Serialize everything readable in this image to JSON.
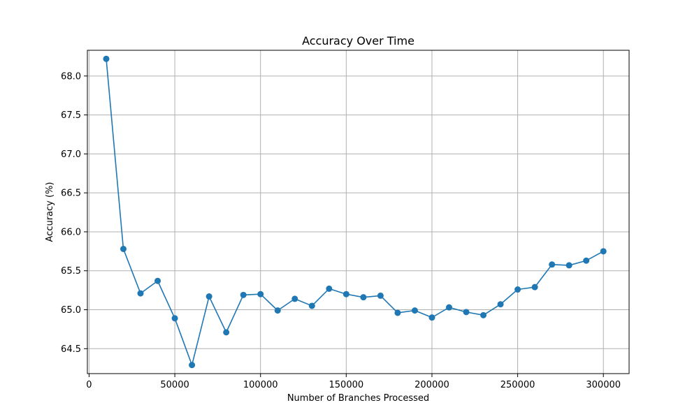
{
  "chart_data": {
    "type": "line",
    "title": "Accuracy Over Time",
    "xlabel": "Number of Branches Processed",
    "ylabel": "Accuracy (%)",
    "xlim": [
      -1000,
      315000
    ],
    "ylim": [
      64.18,
      68.33
    ],
    "xticks": [
      0,
      50000,
      100000,
      150000,
      200000,
      250000,
      300000
    ],
    "yticks": [
      64.5,
      65.0,
      65.5,
      66.0,
      66.5,
      67.0,
      67.5,
      68.0
    ],
    "xtick_labels": [
      "0",
      "50000",
      "100000",
      "150000",
      "200000",
      "250000",
      "300000"
    ],
    "ytick_labels": [
      "64.5",
      "65.0",
      "65.5",
      "66.0",
      "66.5",
      "67.0",
      "67.5",
      "68.0"
    ],
    "grid": true,
    "marker": "circle",
    "series": [
      {
        "color": "#1f77b4",
        "x": [
          10000,
          20000,
          30000,
          40000,
          50000,
          60000,
          70000,
          80000,
          90000,
          100000,
          110000,
          120000,
          130000,
          140000,
          150000,
          160000,
          170000,
          180000,
          190000,
          200000,
          210000,
          220000,
          230000,
          240000,
          250000,
          260000,
          270000,
          280000,
          290000,
          300000
        ],
        "y": [
          68.22,
          65.78,
          65.21,
          65.37,
          64.89,
          64.29,
          65.17,
          64.71,
          65.19,
          65.2,
          64.99,
          65.14,
          65.05,
          65.27,
          65.2,
          65.16,
          65.18,
          64.96,
          64.99,
          64.9,
          65.03,
          64.97,
          64.93,
          65.07,
          65.26,
          65.29,
          65.58,
          65.57,
          65.63,
          65.75
        ]
      }
    ]
  }
}
